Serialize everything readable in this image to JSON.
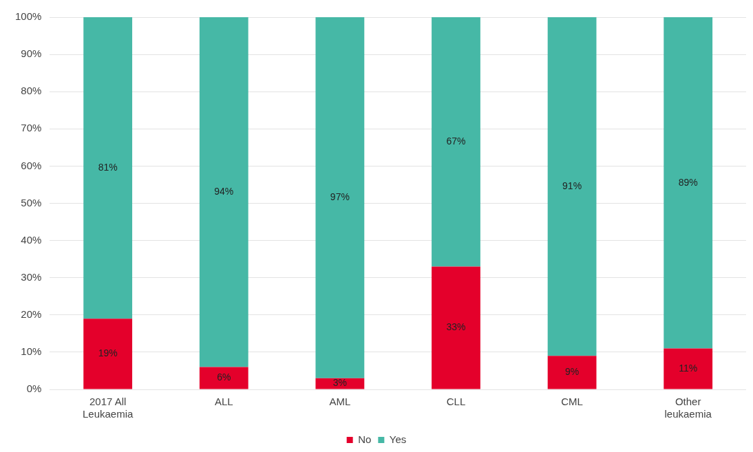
{
  "chart_data": {
    "type": "bar",
    "stacked": true,
    "categories": [
      "2017 All Leukaemia",
      "ALL",
      "AML",
      "CLL",
      "CML",
      "Other leukaemia"
    ],
    "series": [
      {
        "name": "No",
        "color": "#e4002b",
        "values": [
          19,
          6,
          3,
          33,
          9,
          11
        ],
        "value_labels": [
          "19%",
          "6%",
          "3%",
          "33%",
          "9%",
          "11%"
        ]
      },
      {
        "name": "Yes",
        "color": "#46b8a6",
        "values": [
          81,
          94,
          97,
          67,
          91,
          89
        ],
        "value_labels": [
          "81%",
          "94%",
          "97%",
          "67%",
          "91%",
          "89%"
        ]
      }
    ],
    "ylim": [
      0,
      100
    ],
    "yticks": [
      {
        "value": 0,
        "label": "0%"
      },
      {
        "value": 10,
        "label": "10%"
      },
      {
        "value": 20,
        "label": "20%"
      },
      {
        "value": 30,
        "label": "30%"
      },
      {
        "value": 40,
        "label": "40%"
      },
      {
        "value": 50,
        "label": "50%"
      },
      {
        "value": 60,
        "label": "60%"
      },
      {
        "value": 70,
        "label": "70%"
      },
      {
        "value": 80,
        "label": "80%"
      },
      {
        "value": 90,
        "label": "90%"
      },
      {
        "value": 100,
        "label": "100%"
      }
    ],
    "grid": "y",
    "legend": "bottom"
  }
}
